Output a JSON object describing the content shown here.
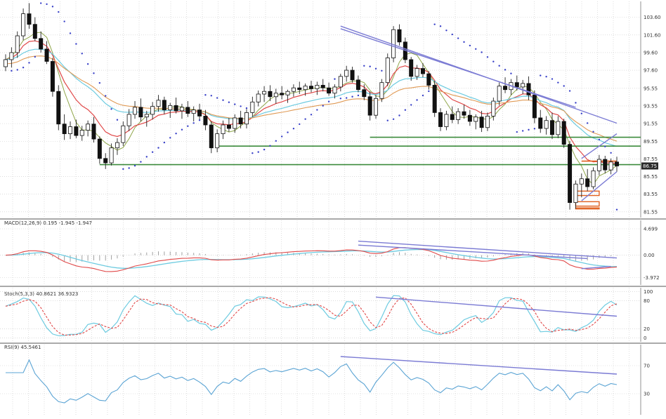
{
  "chart_data": [
    {
      "type": "candlestick",
      "name_on_chart": "",
      "price_ticks": [
        "103.60",
        "101.60",
        "99.60",
        "97.60",
        "95.55",
        "93.55",
        "91.55",
        "89.55",
        "87.55",
        "85.55",
        "83.55",
        "81.55"
      ],
      "current_price": "86.75",
      "ylim": [
        80.9,
        105.4
      ],
      "grid": true,
      "candles": [
        [
          98.0,
          99.4,
          97.5,
          98.8
        ],
        [
          98.8,
          100.2,
          97.9,
          99.6
        ],
        [
          99.6,
          102.0,
          99.0,
          101.5
        ],
        [
          101.5,
          104.6,
          101.0,
          104.0
        ],
        [
          104.0,
          105.2,
          102.3,
          102.8
        ],
        [
          102.8,
          103.6,
          100.9,
          101.2
        ],
        [
          101.2,
          102.0,
          99.6,
          100.0
        ],
        [
          100.0,
          100.9,
          98.3,
          98.6
        ],
        [
          98.6,
          99.0,
          94.6,
          95.2
        ],
        [
          95.2,
          95.9,
          90.8,
          91.5
        ],
        [
          91.5,
          92.6,
          89.7,
          90.4
        ],
        [
          90.4,
          91.8,
          89.8,
          91.2
        ],
        [
          91.2,
          92.0,
          89.9,
          90.2
        ],
        [
          90.2,
          91.3,
          89.6,
          90.8
        ],
        [
          90.8,
          91.9,
          90.1,
          91.5
        ],
        [
          91.5,
          92.3,
          89.4,
          89.8
        ],
        [
          89.8,
          90.1,
          87.0,
          87.6
        ],
        [
          87.6,
          88.2,
          86.4,
          87.1
        ],
        [
          87.1,
          89.3,
          86.8,
          88.8
        ],
        [
          88.8,
          89.9,
          88.0,
          89.4
        ],
        [
          89.4,
          91.8,
          89.0,
          91.3
        ],
        [
          91.3,
          93.2,
          90.7,
          92.6
        ],
        [
          92.6,
          94.1,
          92.1,
          93.4
        ],
        [
          93.4,
          94.4,
          91.8,
          92.3
        ],
        [
          92.3,
          93.0,
          91.2,
          92.6
        ],
        [
          92.6,
          94.0,
          92.0,
          93.5
        ],
        [
          93.5,
          94.8,
          92.9,
          94.2
        ],
        [
          94.2,
          94.6,
          92.6,
          93.1
        ],
        [
          93.1,
          93.9,
          92.2,
          93.6
        ],
        [
          93.6,
          94.5,
          92.7,
          93.0
        ],
        [
          93.0,
          93.8,
          92.1,
          93.4
        ],
        [
          93.4,
          94.1,
          92.3,
          92.7
        ],
        [
          92.7,
          93.5,
          91.8,
          93.1
        ],
        [
          93.1,
          93.8,
          92.0,
          92.4
        ],
        [
          92.4,
          93.1,
          90.8,
          91.4
        ],
        [
          91.4,
          91.8,
          88.2,
          88.8
        ],
        [
          88.8,
          90.9,
          88.3,
          90.4
        ],
        [
          90.4,
          91.9,
          89.8,
          91.4
        ],
        [
          91.4,
          92.2,
          90.6,
          91.0
        ],
        [
          91.0,
          92.6,
          90.5,
          92.2
        ],
        [
          92.2,
          93.0,
          91.0,
          91.5
        ],
        [
          91.5,
          93.2,
          91.0,
          92.8
        ],
        [
          92.8,
          94.6,
          92.3,
          94.0
        ],
        [
          94.0,
          95.3,
          93.5,
          94.9
        ],
        [
          94.9,
          95.8,
          94.0,
          95.2
        ],
        [
          95.2,
          95.9,
          94.1,
          94.6
        ],
        [
          94.6,
          95.5,
          93.8,
          95.0
        ],
        [
          95.0,
          95.8,
          94.3,
          94.8
        ],
        [
          94.8,
          95.4,
          93.9,
          95.2
        ],
        [
          95.2,
          96.0,
          94.6,
          95.6
        ],
        [
          95.6,
          96.3,
          94.9,
          95.4
        ],
        [
          95.4,
          96.1,
          94.7,
          95.8
        ],
        [
          95.8,
          96.4,
          95.1,
          95.5
        ],
        [
          95.5,
          96.3,
          94.8,
          95.9
        ],
        [
          95.9,
          96.6,
          95.2,
          95.6
        ],
        [
          95.6,
          96.2,
          94.7,
          95.0
        ],
        [
          95.0,
          96.0,
          94.4,
          95.7
        ],
        [
          95.7,
          97.2,
          95.2,
          96.9
        ],
        [
          96.9,
          98.1,
          96.3,
          97.6
        ],
        [
          97.6,
          98.0,
          96.2,
          96.5
        ],
        [
          96.5,
          97.0,
          95.1,
          95.4
        ],
        [
          95.4,
          96.0,
          94.2,
          94.6
        ],
        [
          94.6,
          95.2,
          91.9,
          92.5
        ],
        [
          92.5,
          94.8,
          92.1,
          94.4
        ],
        [
          94.4,
          96.6,
          94.0,
          96.2
        ],
        [
          96.2,
          99.5,
          95.8,
          99.0
        ],
        [
          99.0,
          102.6,
          98.5,
          102.2
        ],
        [
          102.2,
          102.8,
          100.4,
          100.8
        ],
        [
          100.8,
          101.3,
          98.4,
          98.8
        ],
        [
          98.8,
          99.1,
          96.4,
          96.9
        ],
        [
          96.9,
          98.2,
          96.5,
          97.8
        ],
        [
          97.8,
          98.4,
          96.8,
          97.2
        ],
        [
          97.2,
          97.5,
          95.4,
          95.9
        ],
        [
          95.9,
          96.4,
          92.3,
          92.8
        ],
        [
          92.8,
          93.3,
          90.7,
          91.2
        ],
        [
          91.2,
          93.0,
          90.8,
          92.6
        ],
        [
          92.6,
          93.5,
          91.6,
          92.0
        ],
        [
          92.0,
          93.3,
          91.5,
          92.9
        ],
        [
          92.9,
          93.7,
          92.1,
          92.5
        ],
        [
          92.5,
          93.1,
          91.3,
          91.8
        ],
        [
          91.8,
          92.6,
          90.9,
          92.3
        ],
        [
          92.3,
          93.0,
          90.6,
          91.1
        ],
        [
          91.1,
          92.8,
          90.7,
          92.4
        ],
        [
          92.4,
          94.5,
          91.9,
          94.1
        ],
        [
          94.1,
          96.2,
          93.6,
          95.8
        ],
        [
          95.8,
          96.8,
          95.0,
          95.4
        ],
        [
          95.4,
          96.6,
          94.8,
          96.2
        ],
        [
          96.2,
          97.0,
          95.3,
          95.7
        ],
        [
          95.7,
          96.5,
          94.9,
          96.1
        ],
        [
          96.1,
          96.9,
          94.2,
          94.8
        ],
        [
          94.8,
          95.3,
          91.6,
          92.2
        ],
        [
          92.2,
          93.1,
          90.5,
          91.0
        ],
        [
          91.0,
          92.4,
          90.3,
          91.9
        ],
        [
          91.9,
          92.8,
          89.8,
          90.3
        ],
        [
          90.3,
          92.4,
          89.9,
          91.8
        ],
        [
          91.8,
          92.1,
          88.8,
          89.2
        ],
        [
          89.2,
          89.6,
          81.8,
          82.6
        ],
        [
          82.6,
          85.1,
          81.9,
          84.7
        ],
        [
          84.7,
          85.9,
          83.2,
          85.3
        ],
        [
          85.3,
          86.4,
          83.9,
          84.4
        ],
        [
          84.4,
          86.6,
          84.1,
          86.2
        ],
        [
          86.2,
          88.0,
          85.7,
          87.5
        ],
        [
          87.5,
          87.9,
          85.9,
          86.3
        ],
        [
          86.3,
          87.6,
          85.8,
          87.2
        ],
        [
          87.2,
          87.8,
          86.1,
          86.75
        ]
      ],
      "horizontal_levels": [
        90.0,
        89.0,
        86.9
      ],
      "callout_level": 87.3,
      "box_levels": [
        {
          "from": 83.4,
          "to": 83.9
        },
        {
          "from": 82.2,
          "to": 82.7
        },
        {
          "from": 81.9,
          "to": 82.0
        }
      ],
      "trendlines": [
        {
          "from": [
            57,
            102.6
          ],
          "to": [
            104,
            91.6
          ]
        },
        {
          "from": [
            57,
            102.3
          ],
          "to": [
            97,
            93.4
          ]
        },
        {
          "from": [
            98,
            87.6
          ],
          "to": [
            104,
            90.4
          ]
        },
        {
          "from": [
            98,
            82.8
          ],
          "to": [
            104,
            86.1
          ]
        }
      ],
      "parabolic_sar_shown": true,
      "moving_averages": 4
    },
    {
      "type": "line",
      "name_on_chart": "MACD(12,26,9) 0.195 -1.945 -1.947",
      "ticks": [
        "4.699",
        "0.00",
        "-3.972"
      ],
      "ylim": [
        -5.3,
        6.2
      ],
      "grid": true,
      "histogram_and_signal_shown": true,
      "trendlines": [
        {
          "from": [
            60,
            2.5
          ],
          "to": [
            104,
            -0.5
          ]
        },
        {
          "from": [
            60,
            1.8
          ],
          "to": [
            99,
            -0.6
          ]
        },
        {
          "from": [
            98,
            -2.4
          ],
          "to": [
            103,
            -2.0
          ]
        }
      ]
    },
    {
      "type": "line",
      "name_on_chart": "Stoch(5,3,3) 40.8621 36.9323",
      "ticks": [
        "100",
        "80",
        "20",
        "0"
      ],
      "ylim": [
        -8,
        108
      ],
      "grid": true,
      "two_lines_shown": true,
      "trendlines": [
        {
          "from": [
            63,
            88.0
          ],
          "to": [
            104,
            47.0
          ]
        }
      ]
    },
    {
      "type": "line",
      "name_on_chart": "RSI(9) 45.5461",
      "ticks": [
        "70",
        "30"
      ],
      "ylim": [
        0,
        100
      ],
      "grid": true,
      "trendlines": [
        {
          "from": [
            57,
            83.0
          ],
          "to": [
            104,
            58.0
          ]
        }
      ]
    }
  ],
  "colors": {
    "candle_up": "#ffffff",
    "candle_down": "#111111",
    "wick": "#222222",
    "ma_fast": "#8fa64a",
    "ma_mid": "#e04848",
    "ma_slow": "#e09a55",
    "ma_cyan": "#6dcbe0",
    "sar_dots": "#3840c8",
    "trendline": "#7b7bd4",
    "level_line": "#3b8b3b",
    "box_line": "#e06020",
    "macd_line": "#e04848",
    "macd_signal": "#6dcbe0",
    "macd_hist": "#a0a0a0",
    "stoch_k": "#6dcbe0",
    "stoch_d": "#e04848",
    "rsi_line": "#5ba4d4",
    "price_badge_bg": "#2a2a2a",
    "price_badge_fg": "#ffffff"
  }
}
